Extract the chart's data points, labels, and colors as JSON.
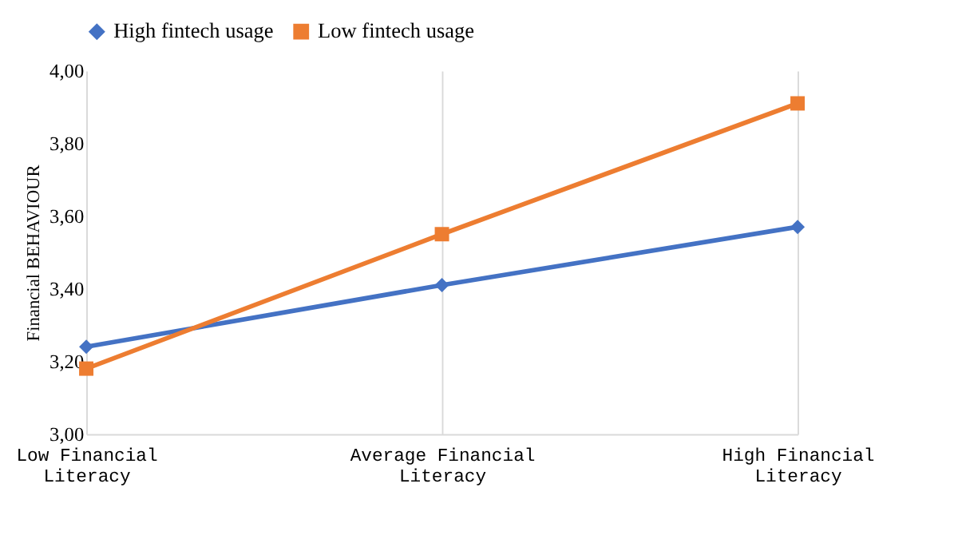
{
  "chart_data": {
    "type": "line",
    "ylabel": "Financial BEHAVIOUR",
    "categories": [
      "Low Financial Literacy",
      "Average Financial Literacy",
      "High Financial Literacy"
    ],
    "series": [
      {
        "name": "High fintech usage",
        "color": "#4472c4",
        "marker": "diamond",
        "values": [
          3.24,
          3.41,
          3.57
        ]
      },
      {
        "name": "Low fintech usage",
        "color": "#ed7d31",
        "marker": "square",
        "values": [
          3.18,
          3.55,
          3.91
        ]
      }
    ],
    "ylim": [
      3.0,
      4.0
    ],
    "yticks": [
      {
        "value": 3.0,
        "label": "3,00"
      },
      {
        "value": 3.2,
        "label": "3,20"
      },
      {
        "value": 3.4,
        "label": "3,40"
      },
      {
        "value": 3.6,
        "label": "3,60"
      },
      {
        "value": 3.8,
        "label": "3,80"
      },
      {
        "value": 4.0,
        "label": "4,00"
      }
    ],
    "grid": "x",
    "legend": "top",
    "line_style": "solid"
  }
}
